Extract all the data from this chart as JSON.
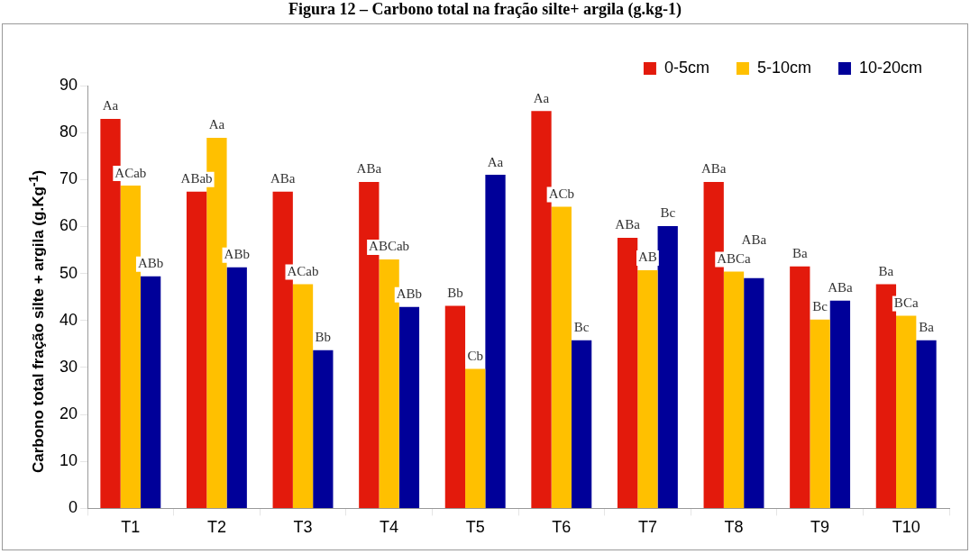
{
  "chart_data": {
    "type": "bar",
    "title": "Figura 12 – Carbono total na fração silte+ argila (g.kg-1)",
    "ylabel": "Carbono total fração silte + argila (g.Kg$^{-1}$)",
    "categories": [
      "T1",
      "T2",
      "T3",
      "T4",
      "T5",
      "T6",
      "T7",
      "T8",
      "T9",
      "T10"
    ],
    "series": [
      {
        "name": "0-5cm",
        "color": "#e31a0c",
        "values": [
          82.9,
          67.4,
          67.4,
          69.5,
          43.1,
          84.6,
          57.6,
          69.5,
          51.5,
          47.7
        ],
        "value_labels": [
          "Aa",
          "ABab",
          "ABa",
          "ABa",
          "Bb",
          "Aa",
          "ABa",
          "ABa",
          "Ba",
          "Ba"
        ]
      },
      {
        "name": "5-10cm",
        "color": "#ffc000",
        "values": [
          68.7,
          78.9,
          47.7,
          53.0,
          29.7,
          64.2,
          50.7,
          50.4,
          40.2,
          41.0
        ],
        "value_labels": [
          "ACab",
          "Aa",
          "ACab",
          "ABCab",
          "Cb",
          "ACb",
          "AB",
          "ABCa",
          "Bc",
          "BCa"
        ]
      },
      {
        "name": "10-20cm",
        "color": "#000099",
        "values": [
          49.4,
          51.3,
          33.7,
          42.9,
          71.0,
          35.8,
          60.1,
          49.0,
          44.2,
          35.8
        ],
        "value_labels": [
          "ABb",
          "ABb",
          "Bb",
          "ABb",
          "Aa",
          "Bc",
          "Bc",
          "ABa",
          "ABa",
          "Ba"
        ]
      }
    ],
    "ylim": [
      0,
      90
    ],
    "yticks": [
      0,
      10,
      20,
      30,
      40,
      50,
      60,
      70,
      80,
      90
    ],
    "grid": false,
    "legend": "top right"
  }
}
